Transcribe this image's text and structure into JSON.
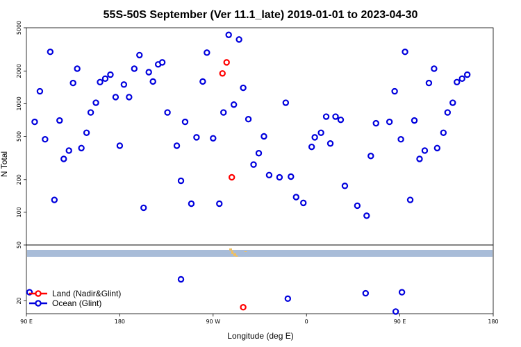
{
  "chart_data": {
    "type": "scatter",
    "title": "55S-50S September (Ver 11.1_late)   2019-01-01 to 2023-04-30",
    "xlabel": "Longitude (deg E)",
    "ylabel": "N Total",
    "x_ticks": [
      {
        "value": 90,
        "label": "90 E"
      },
      {
        "value": 180,
        "label": "180"
      },
      {
        "value": 270,
        "label": "90 W"
      },
      {
        "value": 360,
        "label": "0"
      },
      {
        "value": 450,
        "label": "90 E"
      },
      {
        "value": 540,
        "label": "180"
      }
    ],
    "xlim": [
      90,
      540
    ],
    "upper_panel": {
      "scale": "log",
      "ylim": [
        50,
        5000
      ],
      "y_ticks": [
        50,
        100,
        200,
        500,
        1000,
        2000,
        5000
      ]
    },
    "lower_panel": {
      "scale": "linear",
      "ylim": [
        14,
        46
      ],
      "y_ticks": [
        20
      ],
      "land_band_color": "#a8bcd8",
      "land_mark_color": "#f0c060"
    },
    "legend": {
      "placement": "bottom-left",
      "entries": [
        {
          "label": "Land (Nadir&Glint)",
          "color": "#ff0000"
        },
        {
          "label": "Ocean (Glint)",
          "color": "#0000dd"
        }
      ]
    },
    "series": [
      {
        "name": "Ocean (Glint)",
        "color": "#0000dd",
        "points": [
          [
            98,
            680
          ],
          [
            103,
            1300
          ],
          [
            108,
            470
          ],
          [
            113,
            3000
          ],
          [
            117,
            130
          ],
          [
            122,
            700
          ],
          [
            126,
            310
          ],
          [
            131,
            370
          ],
          [
            135,
            1550
          ],
          [
            139,
            2100
          ],
          [
            143,
            390
          ],
          [
            148,
            540
          ],
          [
            152,
            830
          ],
          [
            157,
            1020
          ],
          [
            161,
            1580
          ],
          [
            166,
            1700
          ],
          [
            171,
            1850
          ],
          [
            176,
            1150
          ],
          [
            180,
            410
          ],
          [
            184,
            1500
          ],
          [
            189,
            1150
          ],
          [
            194,
            2100
          ],
          [
            199,
            2800
          ],
          [
            203,
            110
          ],
          [
            208,
            1950
          ],
          [
            212,
            1600
          ],
          [
            217,
            2300
          ],
          [
            221,
            2400
          ],
          [
            226,
            830
          ],
          [
            235,
            410
          ],
          [
            239,
            195
          ],
          [
            243,
            680
          ],
          [
            249,
            120
          ],
          [
            254,
            490
          ],
          [
            260,
            1600
          ],
          [
            264,
            2950
          ],
          [
            270,
            480
          ],
          [
            276,
            120
          ],
          [
            280,
            830
          ],
          [
            285,
            4300
          ],
          [
            290,
            980
          ],
          [
            295,
            3900
          ],
          [
            299,
            1400
          ],
          [
            304,
            720
          ],
          [
            309,
            275
          ],
          [
            314,
            350
          ],
          [
            319,
            500
          ],
          [
            324,
            220
          ],
          [
            334,
            210
          ],
          [
            340,
            1020
          ],
          [
            345,
            213
          ],
          [
            350,
            138
          ],
          [
            357,
            122
          ],
          [
            365,
            400
          ],
          [
            368,
            490
          ],
          [
            374,
            540
          ],
          [
            379,
            760
          ],
          [
            383,
            430
          ],
          [
            388,
            760
          ],
          [
            393,
            710
          ],
          [
            397,
            175
          ],
          [
            409,
            115
          ],
          [
            418,
            93
          ],
          [
            422,
            330
          ],
          [
            427,
            660
          ],
          [
            440,
            680
          ],
          [
            445,
            1300
          ],
          [
            451,
            470
          ],
          [
            455,
            3000
          ],
          [
            460,
            130
          ],
          [
            464,
            700
          ],
          [
            469,
            310
          ],
          [
            474,
            370
          ],
          [
            478,
            1550
          ],
          [
            483,
            2100
          ],
          [
            486,
            390
          ],
          [
            492,
            540
          ],
          [
            496,
            830
          ],
          [
            501,
            1020
          ],
          [
            505,
            1580
          ],
          [
            510,
            1700
          ],
          [
            515,
            1850
          ]
        ],
        "lower_points": [
          [
            93,
            24
          ],
          [
            239,
            30
          ],
          [
            342,
            21
          ],
          [
            417,
            23.5
          ],
          [
            446,
            15
          ],
          [
            452,
            24
          ]
        ]
      },
      {
        "name": "Land (Nadir&Glint)",
        "color": "#ff0000",
        "points": [
          [
            279,
            1900
          ],
          [
            283,
            2400
          ],
          [
            288,
            210
          ]
        ],
        "lower_points": [
          [
            299,
            17
          ]
        ]
      }
    ]
  }
}
